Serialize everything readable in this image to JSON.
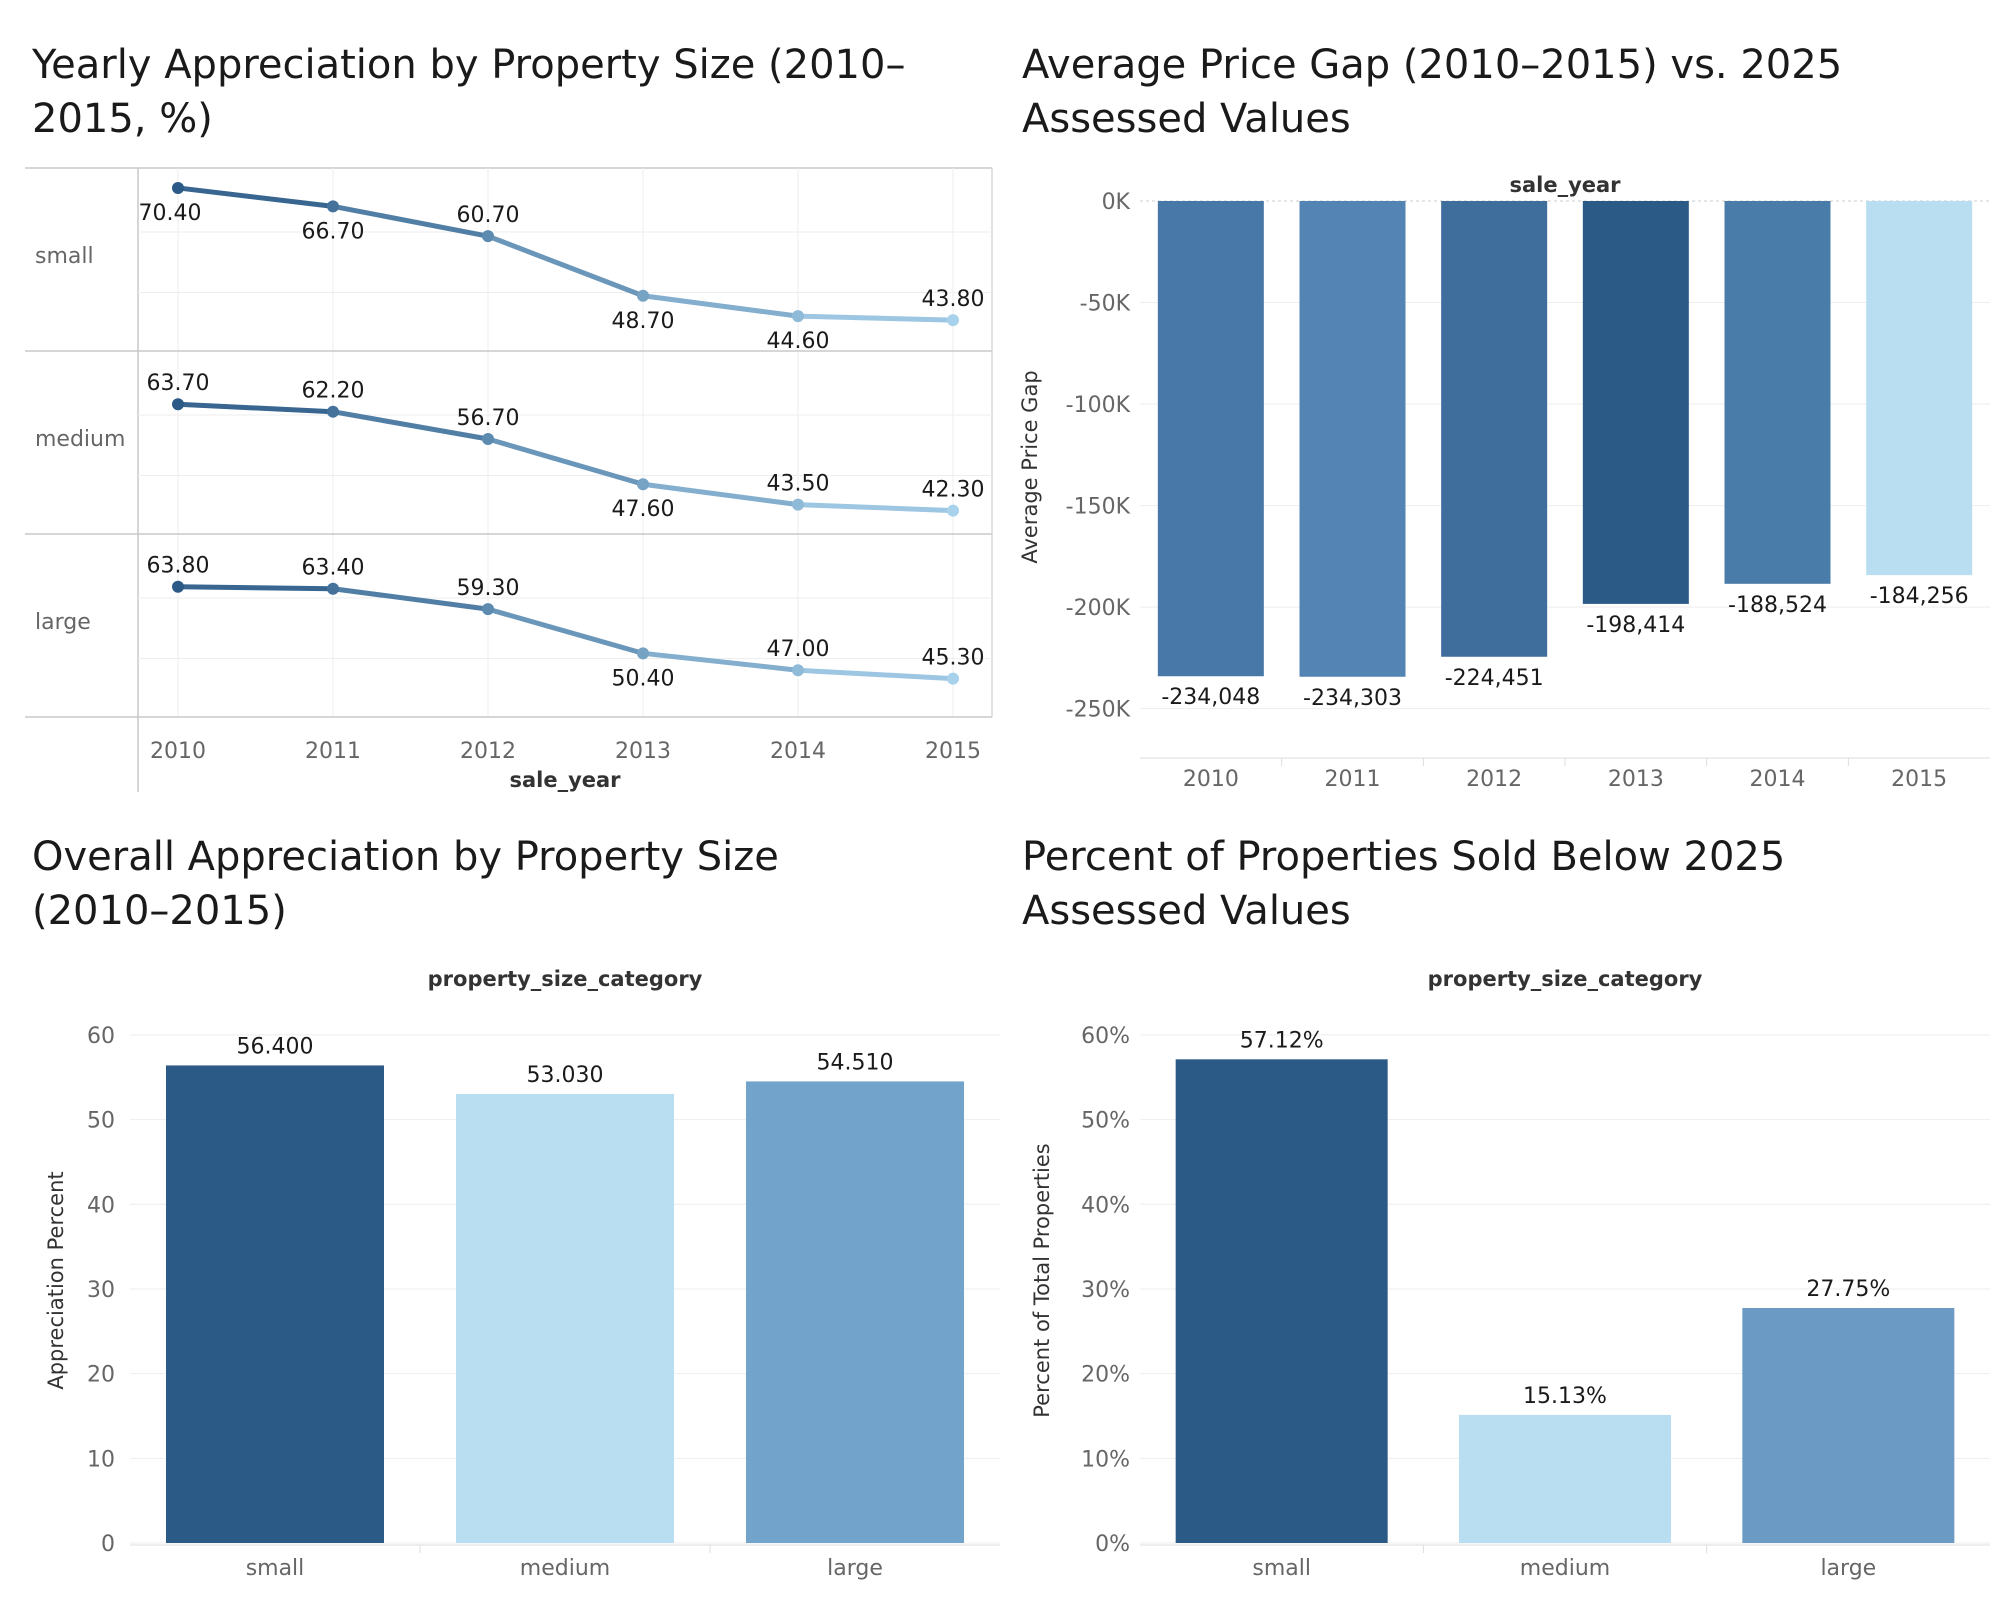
{
  "panels": {
    "p1": {
      "title": "Yearly Appreciation by Property Size (2010–2015, %)",
      "chart_data": {
        "type": "line",
        "x": [
          2010,
          2011,
          2012,
          2013,
          2014,
          2015
        ],
        "xlabel": "sale_year",
        "ylabel": "",
        "series": [
          {
            "name": "small",
            "values": [
              70.4,
              66.7,
              60.7,
              48.7,
              44.6,
              43.8
            ]
          },
          {
            "name": "medium",
            "values": [
              63.7,
              62.2,
              56.7,
              47.6,
              43.5,
              42.3
            ]
          },
          {
            "name": "large",
            "values": [
              63.8,
              63.4,
              59.3,
              50.4,
              47.0,
              45.3
            ]
          }
        ],
        "point_labels": [
          [
            "70.40",
            "66.70",
            "60.70",
            "48.70",
            "44.60",
            "43.80"
          ],
          [
            "63.70",
            "62.20",
            "56.70",
            "47.60",
            "43.50",
            "42.30"
          ],
          [
            "63.80",
            "63.40",
            "59.30",
            "50.40",
            "47.00",
            "45.30"
          ]
        ],
        "color_range": [
          "#2b5a87",
          "#a8d2ec"
        ],
        "grid": true
      }
    },
    "p2": {
      "title": "Average Price Gap (2010–2015) vs. 2025 Assessed Values",
      "chart_data": {
        "type": "bar",
        "header": "sale_year",
        "categories": [
          "2010",
          "2011",
          "2012",
          "2013",
          "2014",
          "2015"
        ],
        "values": [
          -234048,
          -234303,
          -224451,
          -198414,
          -188524,
          -184256
        ],
        "value_labels": [
          "-234,048",
          "-234,303",
          "-224,451",
          "-198,414",
          "-188,524",
          "-184,256"
        ],
        "colors": [
          "#4878a8",
          "#5384b4",
          "#3f6d9c",
          "#2b5a87",
          "#4a7caa",
          "#b9def1"
        ],
        "ylabel": "Average Price Gap",
        "ylim": [
          -262000,
          0
        ],
        "yticks": [
          0,
          -50000,
          -100000,
          -150000,
          -200000,
          -250000
        ],
        "ytick_labels": [
          "0K",
          "-50K",
          "-100K",
          "-150K",
          "-200K",
          "-250K"
        ],
        "grid": true
      }
    },
    "p3": {
      "title": "Overall Appreciation by Property Size (2010–2015)",
      "chart_data": {
        "type": "bar",
        "header": "property_size_category",
        "categories": [
          "small",
          "medium",
          "large"
        ],
        "values": [
          56.4,
          53.03,
          54.51
        ],
        "value_labels": [
          "56.400",
          "53.030",
          "54.510"
        ],
        "colors": [
          "#2b5a87",
          "#b9def1",
          "#72a3cb"
        ],
        "ylabel": "Appreciation Percent",
        "ylim": [
          0,
          62
        ],
        "yticks": [
          0,
          10,
          20,
          30,
          40,
          50,
          60
        ],
        "ytick_labels": [
          "0",
          "10",
          "20",
          "30",
          "40",
          "50",
          "60"
        ],
        "grid": true
      }
    },
    "p4": {
      "title": "Percent of Properties Sold Below 2025 Assessed Values",
      "chart_data": {
        "type": "bar",
        "header": "property_size_category",
        "categories": [
          "small",
          "medium",
          "large"
        ],
        "values": [
          57.12,
          15.13,
          27.75
        ],
        "value_labels": [
          "57.12%",
          "15.13%",
          "27.75%"
        ],
        "colors": [
          "#2b5a87",
          "#b9def1",
          "#6b9ac4"
        ],
        "ylabel": "Percent of Total Properties",
        "ylim": [
          0,
          62
        ],
        "yticks": [
          0,
          10,
          20,
          30,
          40,
          50,
          60
        ],
        "ytick_labels": [
          "0%",
          "10%",
          "20%",
          "30%",
          "40%",
          "50%",
          "60%"
        ],
        "grid": true
      }
    }
  }
}
